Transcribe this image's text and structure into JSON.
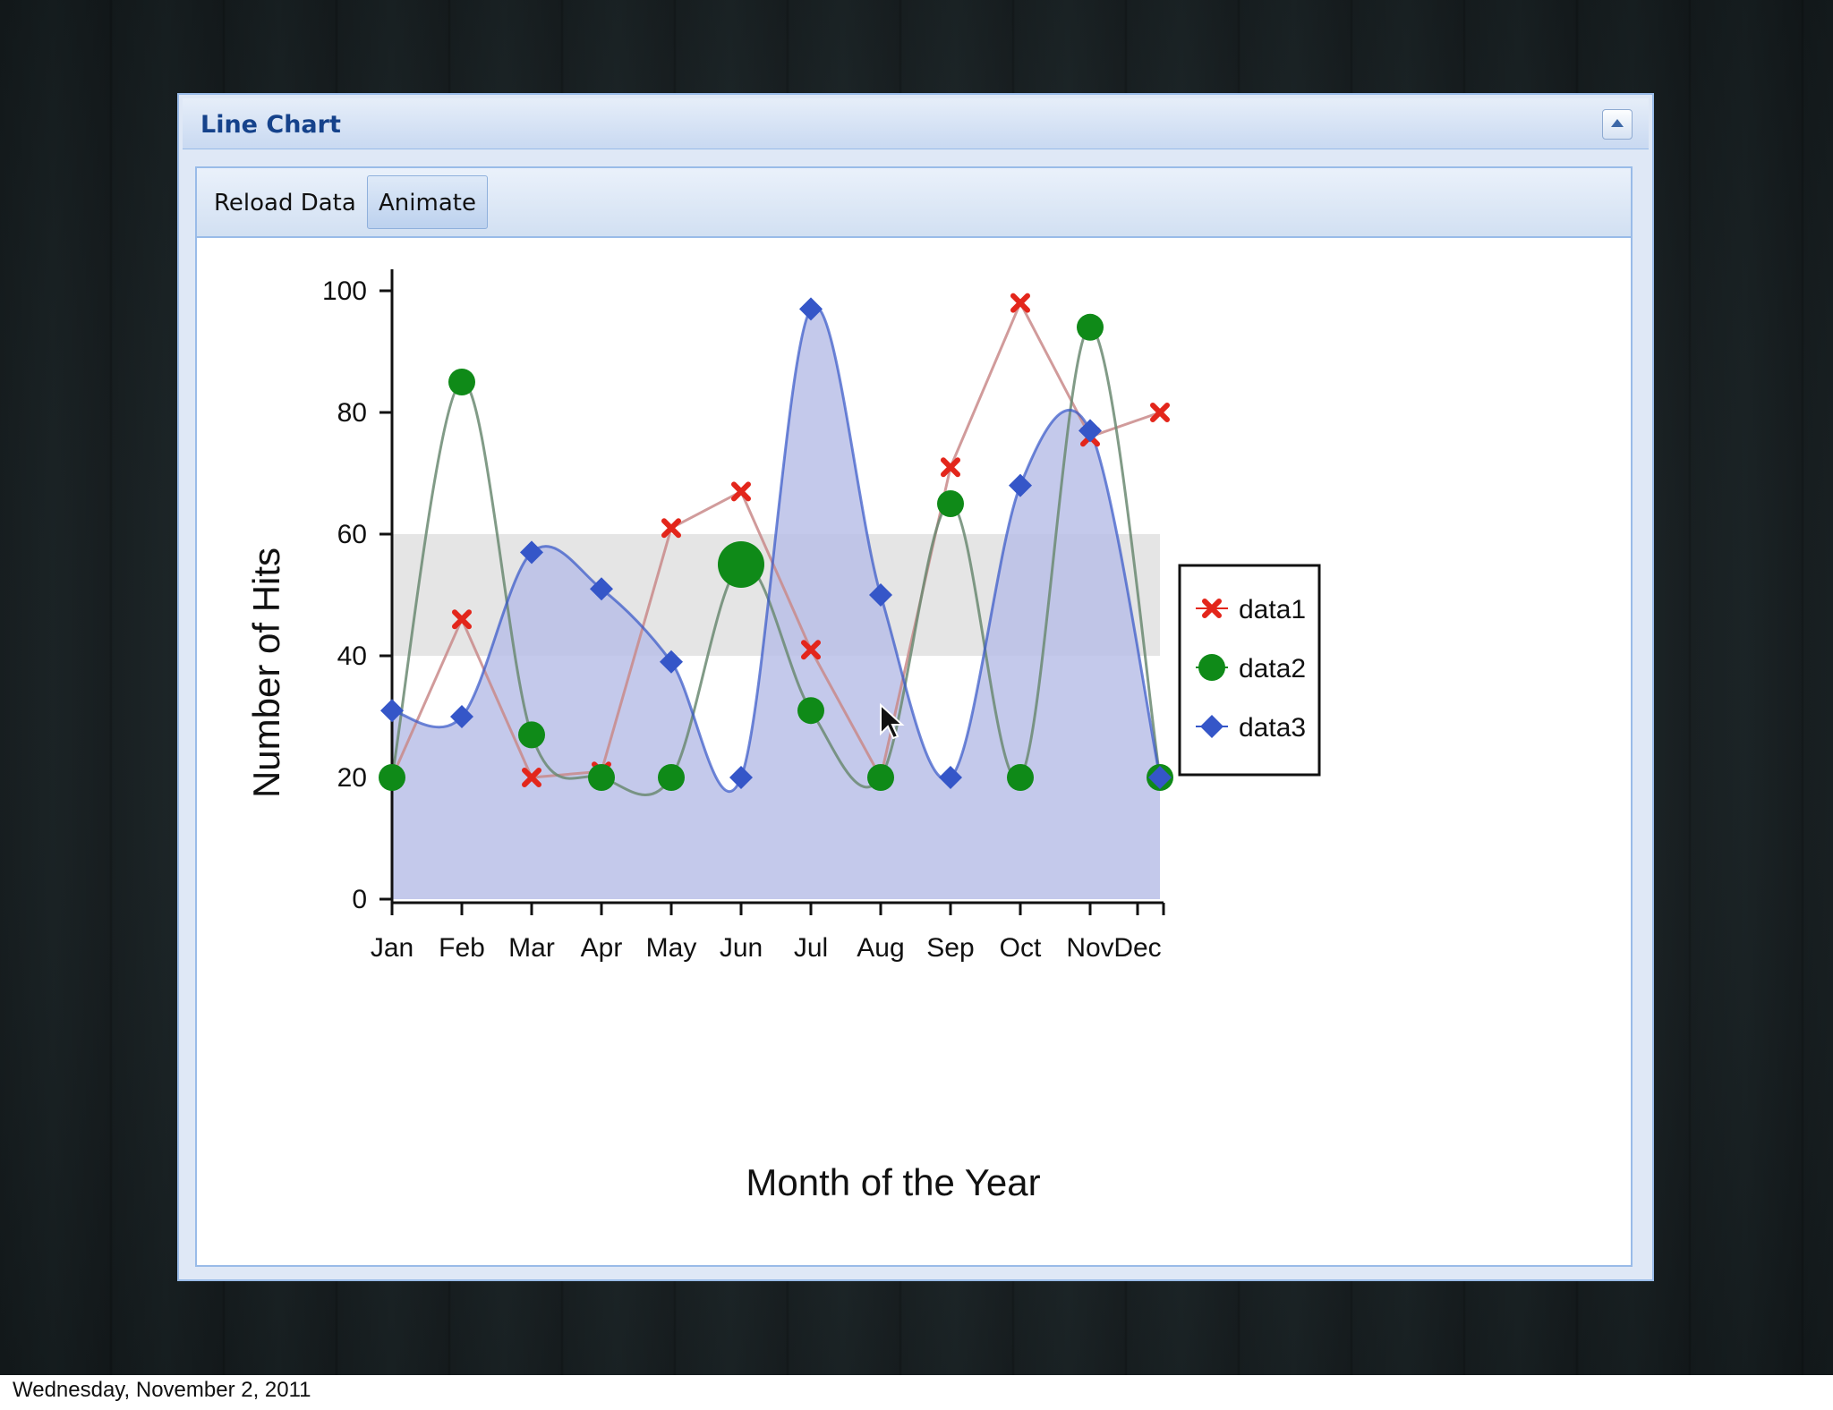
{
  "panel": {
    "title": "Line Chart"
  },
  "toolbar": {
    "reload_label": "Reload Data",
    "animate_label": "Animate"
  },
  "footer": {
    "date": "Wednesday, November 2, 2011"
  },
  "colors": {
    "data1": "#e3261b",
    "data2": "#0f8a18",
    "data3": "#3556c8",
    "area_fill": "#b7bde6",
    "band_fill": "#e2e2e2",
    "panel_border": "#99bbe8",
    "title_text": "#15428b"
  },
  "chart_data": {
    "type": "line",
    "xlabel": "Month of the Year",
    "ylabel": "Number of Hits",
    "ylim": [
      0,
      100
    ],
    "yticks": [
      0,
      20,
      40,
      60,
      80,
      100
    ],
    "categories": [
      "Jan",
      "Feb",
      "Mar",
      "Apr",
      "May",
      "Jun",
      "Jul",
      "Aug",
      "Sep",
      "Oct",
      "Nov",
      "Dec"
    ],
    "bands": [
      [
        40,
        60
      ]
    ],
    "legend_position": "right",
    "grid": false,
    "series": [
      {
        "name": "data1",
        "marker": "cross",
        "smooth": false,
        "fill": false,
        "values": [
          20,
          46,
          20,
          21,
          61,
          67,
          41,
          20,
          71,
          98,
          76,
          80
        ]
      },
      {
        "name": "data2",
        "marker": "circle",
        "smooth": true,
        "fill": false,
        "values": [
          20,
          85,
          27,
          20,
          20,
          55,
          31,
          20,
          65,
          20,
          94,
          20
        ]
      },
      {
        "name": "data3",
        "marker": "diamond",
        "smooth": true,
        "fill": true,
        "values": [
          31,
          30,
          57,
          51,
          39,
          20,
          97,
          50,
          20,
          68,
          77,
          20
        ]
      }
    ]
  }
}
